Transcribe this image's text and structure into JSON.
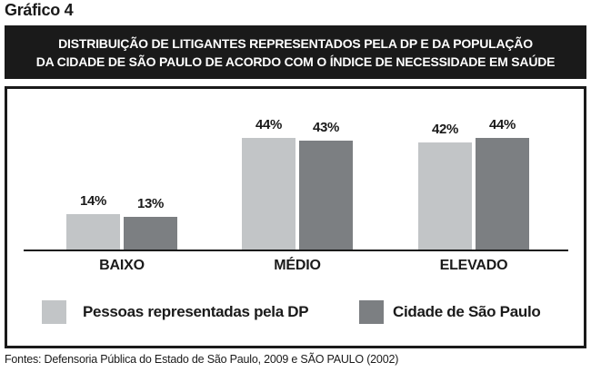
{
  "figure_label": "Gráfico 4",
  "banner": {
    "line1": "DISTRIBUIÇÃO DE LITIGANTES REPRESENTADOS PELA DP E DA POPULAÇÃO",
    "line2": "DA CIDADE DE SÃO PAULO DE ACORDO COM O ÍNDICE DE NECESSIDADE EM SAÚDE"
  },
  "chart_data": {
    "type": "bar",
    "title": "Distribuição de litigantes representados pela DP e da população da cidade de São Paulo de acordo com o índice de necessidade em saúde",
    "categories": [
      "BAIXO",
      "MÉDIO",
      "ELEVADO"
    ],
    "series": [
      {
        "name": "Pessoas representadas pela DP",
        "color": "#c2c5c7",
        "values": [
          14,
          44,
          42
        ]
      },
      {
        "name": "Cidade de São Paulo",
        "color": "#7c7f82",
        "values": [
          13,
          43,
          44
        ]
      }
    ],
    "value_suffix": "%",
    "xlabel": "",
    "ylabel": "",
    "ylim": [
      0,
      50
    ],
    "grid": false,
    "legend_position": "bottom",
    "value_labels_shown": true
  },
  "colors": {
    "banner_background": "#1a1a1a",
    "border": "#1a1a1a",
    "text": "#1a1a1a",
    "background": "#ffffff"
  },
  "source_note": "Fontes: Defensoria Pública do Estado de São Paulo, 2009 e SÃO PAULO (2002)"
}
